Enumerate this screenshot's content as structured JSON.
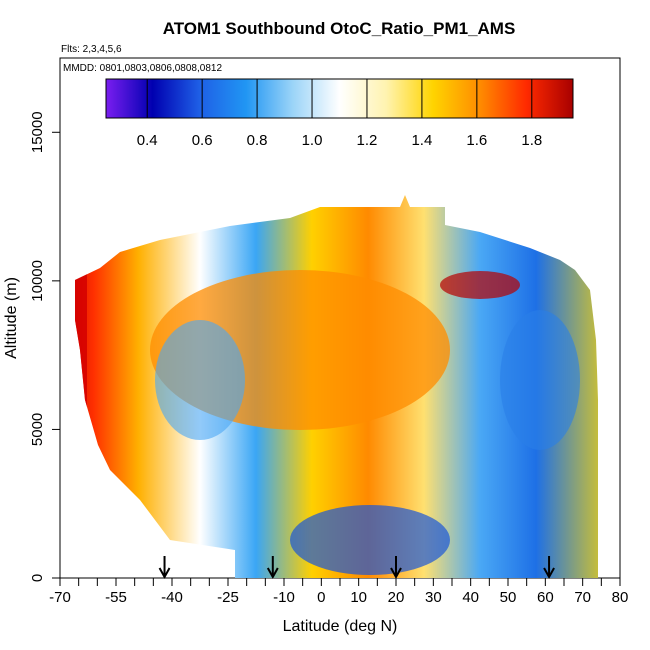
{
  "chart_data": {
    "type": "heatmap",
    "title": "ATOM1 Southbound OtoC_Ratio_PM1_AMS",
    "subtitle_flights": "Flts: 2,3,4,5,6",
    "subtitle_dates": "MMDD: 0801,0803,0806,0808,0812",
    "xlabel": "Latitude (deg N)",
    "ylabel": "Altitude (m)",
    "xlim": [
      -70,
      80
    ],
    "ylim": [
      0,
      17500
    ],
    "x_ticks": [
      -70,
      -55,
      -40,
      -25,
      -10,
      0,
      10,
      20,
      30,
      40,
      50,
      60,
      70,
      80
    ],
    "x_tick_labels": [
      "-70",
      "-55",
      "-40",
      "-25",
      "-10",
      "0",
      "10",
      "20",
      "30",
      "40",
      "50",
      "60",
      "70",
      "80"
    ],
    "x_minor_ticks": [
      -65,
      -60,
      -50,
      -45,
      -35,
      -30,
      -20,
      -15,
      -5,
      5,
      15,
      25,
      35,
      45,
      55,
      65,
      75
    ],
    "y_ticks": [
      0,
      5000,
      10000,
      15000
    ],
    "y_tick_labels": [
      "0",
      "5000",
      "10000",
      "15000"
    ],
    "colorbar": {
      "range": [
        0.25,
        1.95
      ],
      "ticks": [
        0.4,
        0.6,
        0.8,
        1.0,
        1.2,
        1.4,
        1.6,
        1.8
      ],
      "tick_labels": [
        "0.4",
        "0.6",
        "0.8",
        "1.0",
        "1.2",
        "1.4",
        "1.6",
        "1.8"
      ],
      "colors": [
        "#7a1ef0",
        "#0000b0",
        "#1e5fe6",
        "#2196f3",
        "#9bd4f8",
        "#ffffff",
        "#fff3b0",
        "#ffd400",
        "#ff8c00",
        "#ff2a00",
        "#a80000"
      ]
    },
    "arrow_latitudes": [
      -42,
      -13,
      20,
      61
    ],
    "grid": false
  }
}
